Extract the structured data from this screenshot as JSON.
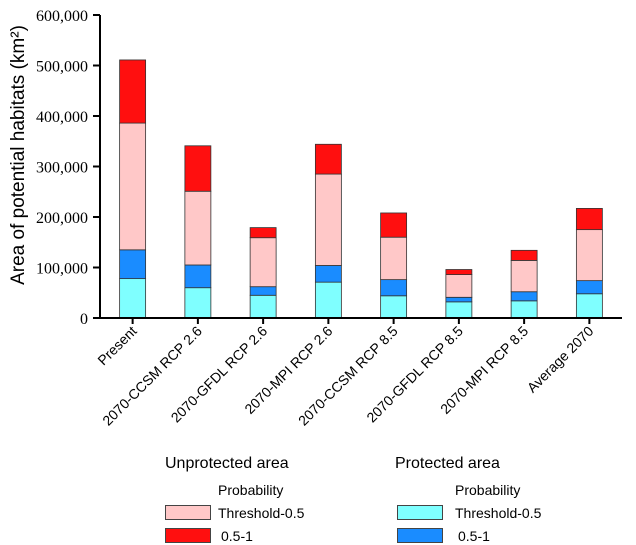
{
  "chart_data": {
    "type": "bar",
    "stacked": true,
    "ylabel": "Area of potential habitats (km²)",
    "ylim": [
      0,
      600000
    ],
    "yticks": [
      0,
      100000,
      200000,
      300000,
      400000,
      500000,
      600000
    ],
    "ytick_labels": [
      "0",
      "100,000",
      "200,000",
      "300,000",
      "400,000",
      "500,000",
      "600,000"
    ],
    "categories": [
      "Present",
      "2070-CCSM RCP 2.6",
      "2070-GFDL RCP 2.6",
      "2070-MPI RCP 2.6",
      "2070-CCSM RCP 8.5",
      "2070-GFDL RCP 8.5",
      "2070-MPI RCP 8.5",
      "Average 2070"
    ],
    "series": [
      {
        "group": "Protected area",
        "name": "Threshold-0.5",
        "color": "#7fffff",
        "values": [
          78000,
          60000,
          45000,
          71000,
          44000,
          32000,
          34000,
          48000
        ]
      },
      {
        "group": "Protected area",
        "name": "0.5-1",
        "color": "#1a8cff",
        "values": [
          57000,
          45000,
          17000,
          33000,
          32000,
          9000,
          18000,
          26000
        ]
      },
      {
        "group": "Unprotected area",
        "name": "Threshold-0.5",
        "color": "#ffc8c8",
        "values": [
          251000,
          146000,
          97000,
          181000,
          84000,
          45000,
          62000,
          101000
        ]
      },
      {
        "group": "Unprotected area",
        "name": "0.5-1",
        "color": "#ff0f0f",
        "values": [
          125000,
          90000,
          20000,
          59000,
          48000,
          10000,
          20000,
          42000
        ]
      }
    ],
    "grid": false,
    "legend_position": "bottom"
  },
  "legend": {
    "unprotected": {
      "title": "Unprotected area",
      "subtitle": "Probability",
      "items": [
        "Threshold-0.5",
        "0.5-1"
      ],
      "colors": [
        "#ffc8c8",
        "#ff0f0f"
      ]
    },
    "protected": {
      "title": "Protected area",
      "subtitle": "Probability",
      "items": [
        "Threshold-0.5",
        "0.5-1"
      ],
      "colors": [
        "#7fffff",
        "#1a8cff"
      ]
    }
  }
}
